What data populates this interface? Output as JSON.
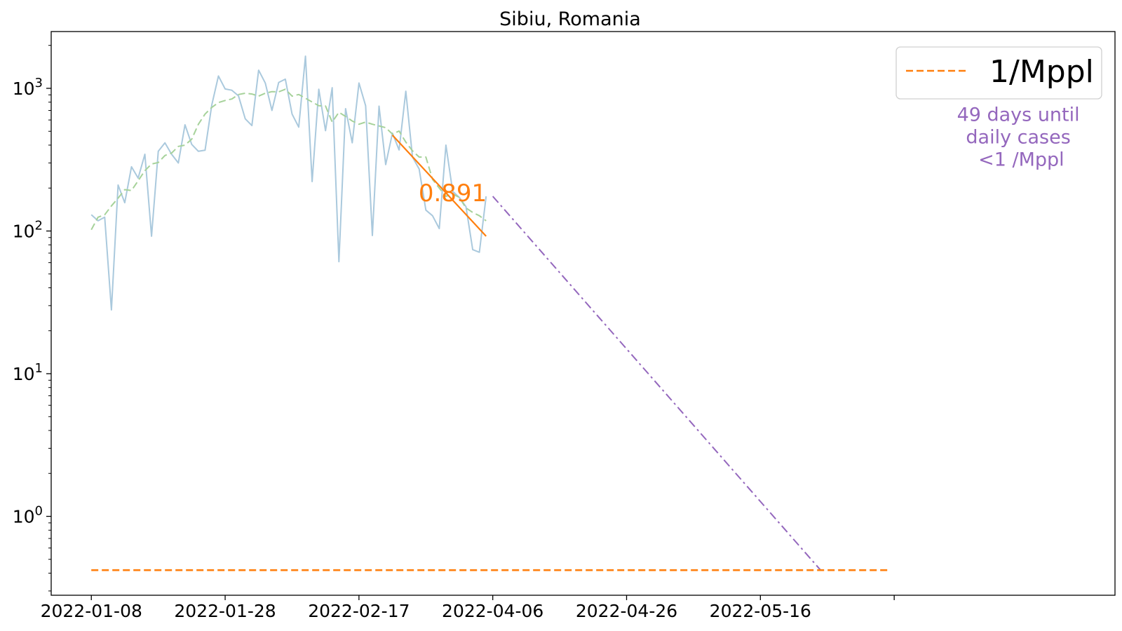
{
  "chart_data": {
    "type": "line",
    "title": "Sibiu, Romania",
    "xlabel": "",
    "ylabel": "",
    "yscale": "log",
    "ylim": [
      0.28,
      2500
    ],
    "xlim": [
      "2022-01-02",
      "2022-06-10"
    ],
    "x_ticks": [
      "2022-01-08",
      "2022-01-28",
      "2022-02-17",
      "2022-04-06",
      "2022-04-26",
      "2022-05-16",
      ""
    ],
    "y_ticks": [
      {
        "value": 1,
        "base": "10",
        "exp": "0"
      },
      {
        "value": 10,
        "base": "10",
        "exp": "1"
      },
      {
        "value": 100,
        "base": "10",
        "exp": "2"
      },
      {
        "value": 1000,
        "base": "10",
        "exp": "3"
      }
    ],
    "grid": false,
    "legend": {
      "placement": "upper-right",
      "entries": [
        {
          "label": "1/Mppl",
          "color": "#ff7f0e",
          "style": "dashed"
        }
      ]
    },
    "series": [
      {
        "role": "daily",
        "color": "#aac9dd",
        "style": "solid",
        "start": "2022-01-08",
        "values": [
          130,
          118,
          125,
          28,
          210,
          158,
          282,
          235,
          345,
          92,
          362,
          415,
          345,
          300,
          555,
          405,
          362,
          368,
          765,
          1220,
          990,
          970,
          885,
          612,
          548,
          1340,
          1090,
          700,
          1100,
          1160,
          660,
          535,
          1680,
          222,
          985,
          505,
          1010,
          61,
          720,
          415,
          1090,
          755,
          93,
          750,
          292,
          485,
          370,
          955,
          330,
          272,
          140,
          128,
          104,
          400,
          190,
          172,
          148,
          74,
          71,
          175
        ]
      },
      {
        "role": "average",
        "color": "#a6d29a",
        "style": "dashed",
        "start": "2022-01-08",
        "values": [
          102,
          125,
          130,
          150,
          170,
          195,
          192,
          225,
          265,
          295,
          302,
          338,
          352,
          392,
          400,
          440,
          560,
          660,
          735,
          795,
          822,
          842,
          905,
          925,
          912,
          882,
          925,
          948,
          945,
          985,
          882,
          905,
          852,
          802,
          755,
          752,
          580,
          680,
          635,
          590,
          560,
          580,
          560,
          545,
          530,
          478,
          502,
          420,
          365,
          330,
          330,
          230,
          200,
          175,
          182,
          172,
          145,
          135,
          128,
          118
        ]
      },
      {
        "role": "fit",
        "color": "#ff7f0e",
        "style": "solid",
        "points": [
          [
            "2022-02-22",
            470
          ],
          [
            "2022-03-08",
            92
          ]
        ]
      },
      {
        "role": "projection",
        "color": "#9467bd",
        "style": "dashdot",
        "points": [
          [
            "2022-03-09",
            175
          ],
          [
            "2022-04-27",
            0.42
          ]
        ]
      },
      {
        "role": "threshold",
        "name": "1/Mppl",
        "color": "#ff7f0e",
        "style": "dashed",
        "points": [
          [
            "2022-01-08",
            0.42
          ],
          [
            "2022-05-07",
            0.42
          ]
        ]
      }
    ],
    "annotations": [
      {
        "text": "0.891",
        "color": "#ff7f0e",
        "at": [
          "2022-03-03",
          185
        ]
      },
      {
        "lines": [
          "49 days until",
          "daily cases",
          "<1 /Mppl"
        ],
        "color": "#9467bd",
        "at": [
          "2022-05-27",
          300
        ]
      }
    ]
  }
}
